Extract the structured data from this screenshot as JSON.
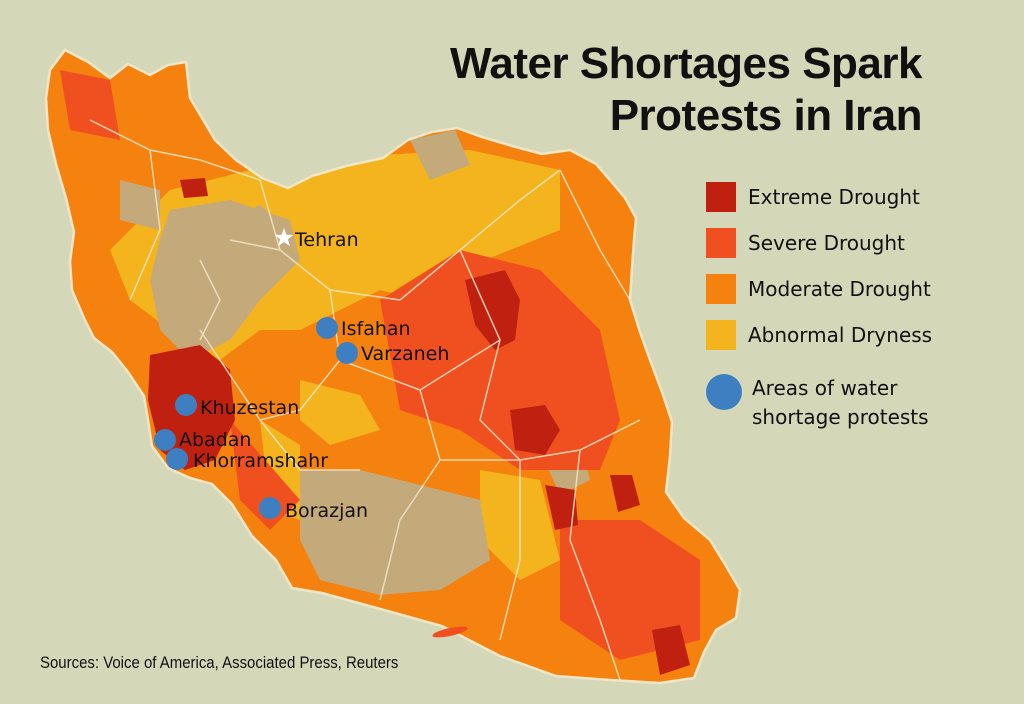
{
  "title": {
    "line1": "Water Shortages Spark",
    "line2": "Protests in Iran"
  },
  "legend": {
    "items": [
      {
        "label": "Extreme Drought",
        "color": "#c02010"
      },
      {
        "label": "Severe Drought",
        "color": "#f05020"
      },
      {
        "label": "Moderate Drought",
        "color": "#f5820e"
      },
      {
        "label": "Abnormal Dryness",
        "color": "#f4b41e"
      }
    ],
    "protest": {
      "line1": "Areas of water",
      "line2": "shortage protests",
      "color": "#3e7fc1"
    }
  },
  "capital": {
    "name": "Tehran",
    "icon": "star-icon"
  },
  "protest_locations": [
    "Isfahan",
    "Varzaneh",
    "Khuzestan",
    "Abadan",
    "Khorramshahr",
    "Borazjan"
  ],
  "colors": {
    "background": "#d4d8b9",
    "no_drought": "#c4a97a",
    "borders": "#f2e6c6"
  },
  "sources": "Sources: Voice of America, Associated Press, Reuters"
}
